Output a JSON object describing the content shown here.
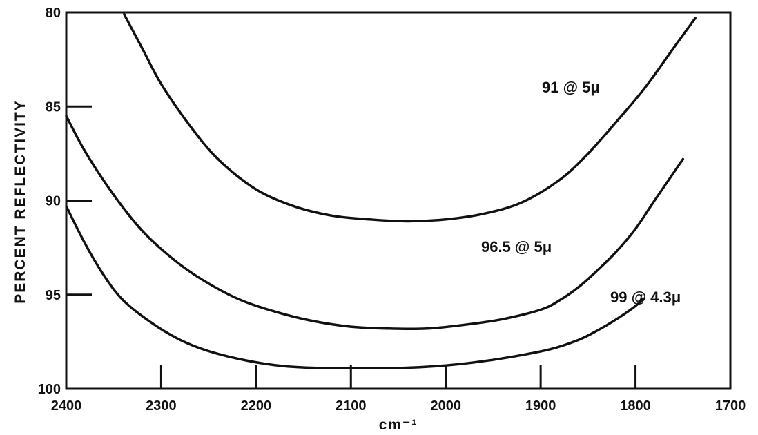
{
  "chart_data": {
    "type": "line",
    "xlabel": "cm⁻¹",
    "ylabel": "PERCENT  REFLECTIVITY",
    "xlim": [
      2400,
      1700
    ],
    "ylim": [
      100,
      80
    ],
    "x_ticks": [
      "2400",
      "2300",
      "2200",
      "2100",
      "2000",
      "1900",
      "1800",
      "1700"
    ],
    "y_ticks": [
      "80",
      "85",
      "90",
      "95",
      "100"
    ],
    "grid": false,
    "series": [
      {
        "name": "91 @ 5μ",
        "x": [
          2339,
          2320,
          2300,
          2270,
          2240,
          2200,
          2160,
          2120,
          2080,
          2040,
          2000,
          1960,
          1920,
          1880,
          1850,
          1820,
          1790,
          1760,
          1737
        ],
        "y": [
          80.1,
          81.9,
          83.8,
          86.0,
          87.8,
          89.4,
          90.3,
          90.8,
          91.0,
          91.1,
          91.0,
          90.7,
          90.1,
          88.9,
          87.5,
          85.8,
          84.0,
          81.9,
          80.3
        ]
      },
      {
        "name": "96.5 @ 5μ",
        "x": [
          2400,
          2380,
          2350,
          2320,
          2290,
          2260,
          2220,
          2180,
          2140,
          2100,
          2060,
          2020,
          1980,
          1940,
          1900,
          1880,
          1860,
          1840,
          1820,
          1800,
          1780,
          1765,
          1750
        ],
        "y": [
          85.5,
          87.4,
          89.7,
          91.6,
          93.0,
          94.1,
          95.2,
          95.9,
          96.4,
          96.7,
          96.8,
          96.8,
          96.6,
          96.3,
          95.8,
          95.3,
          94.6,
          93.7,
          92.7,
          91.5,
          90.0,
          88.9,
          87.8
        ]
      },
      {
        "name": "99 @ 4.3μ",
        "x": [
          2400,
          2380,
          2360,
          2340,
          2310,
          2280,
          2250,
          2210,
          2170,
          2130,
          2090,
          2050,
          2010,
          1970,
          1930,
          1890,
          1860,
          1840,
          1820,
          1800,
          1792
        ],
        "y": [
          90.3,
          92.3,
          94.0,
          95.3,
          96.5,
          97.4,
          98.0,
          98.5,
          98.8,
          98.9,
          98.9,
          98.9,
          98.8,
          98.6,
          98.3,
          97.9,
          97.4,
          96.9,
          96.3,
          95.6,
          95.2
        ]
      }
    ],
    "annotations": {
      "s0": "91 @ 5μ",
      "s1": "96.5 @ 5μ",
      "s2": "99 @ 4.3μ"
    }
  }
}
